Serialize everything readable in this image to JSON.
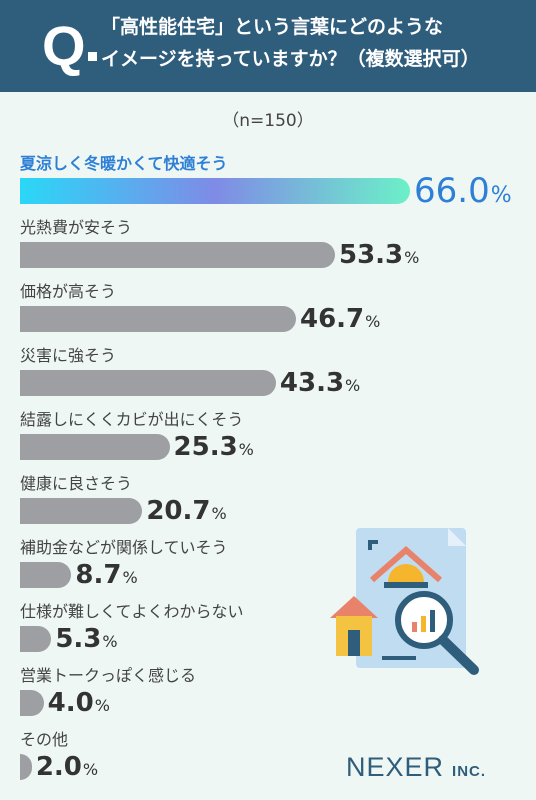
{
  "question": {
    "mark": "Q",
    "line1": "「高性能住宅」という言葉にどのような",
    "line2": "イメージを持っていますか？（複数選択可）"
  },
  "n_label": "（n=150）",
  "chart_data": {
    "type": "bar",
    "orientation": "horizontal",
    "categories": [
      "夏涼しく冬暖かくて快適そう",
      "光熱費が安そう",
      "価格が高そう",
      "災害に強そう",
      "結露しにくくカビが出にくそう",
      "健康に良さそう",
      "補助金などが関係していそう",
      "仕様が難しくてよくわからない",
      "営業トークっぽく感じる",
      "その他"
    ],
    "values": [
      66.0,
      53.3,
      46.7,
      43.3,
      25.3,
      20.7,
      8.7,
      5.3,
      4.0,
      2.0
    ],
    "value_labels": [
      "66.0",
      "53.3",
      "46.7",
      "43.3",
      "25.3",
      "20.7",
      "8.7",
      "5.3",
      "4.0",
      "2.0"
    ],
    "unit": "%",
    "xlim": [
      0,
      100
    ],
    "highlight_index": 0,
    "colors": {
      "highlight_label": "#2e7fd6",
      "bar": "#9d9fa3"
    }
  },
  "brand": {
    "name": "NEXER",
    "suffix": "INC."
  },
  "colors": {
    "header_bg": "#2f5d7c",
    "page_bg": "#eef7f4"
  }
}
